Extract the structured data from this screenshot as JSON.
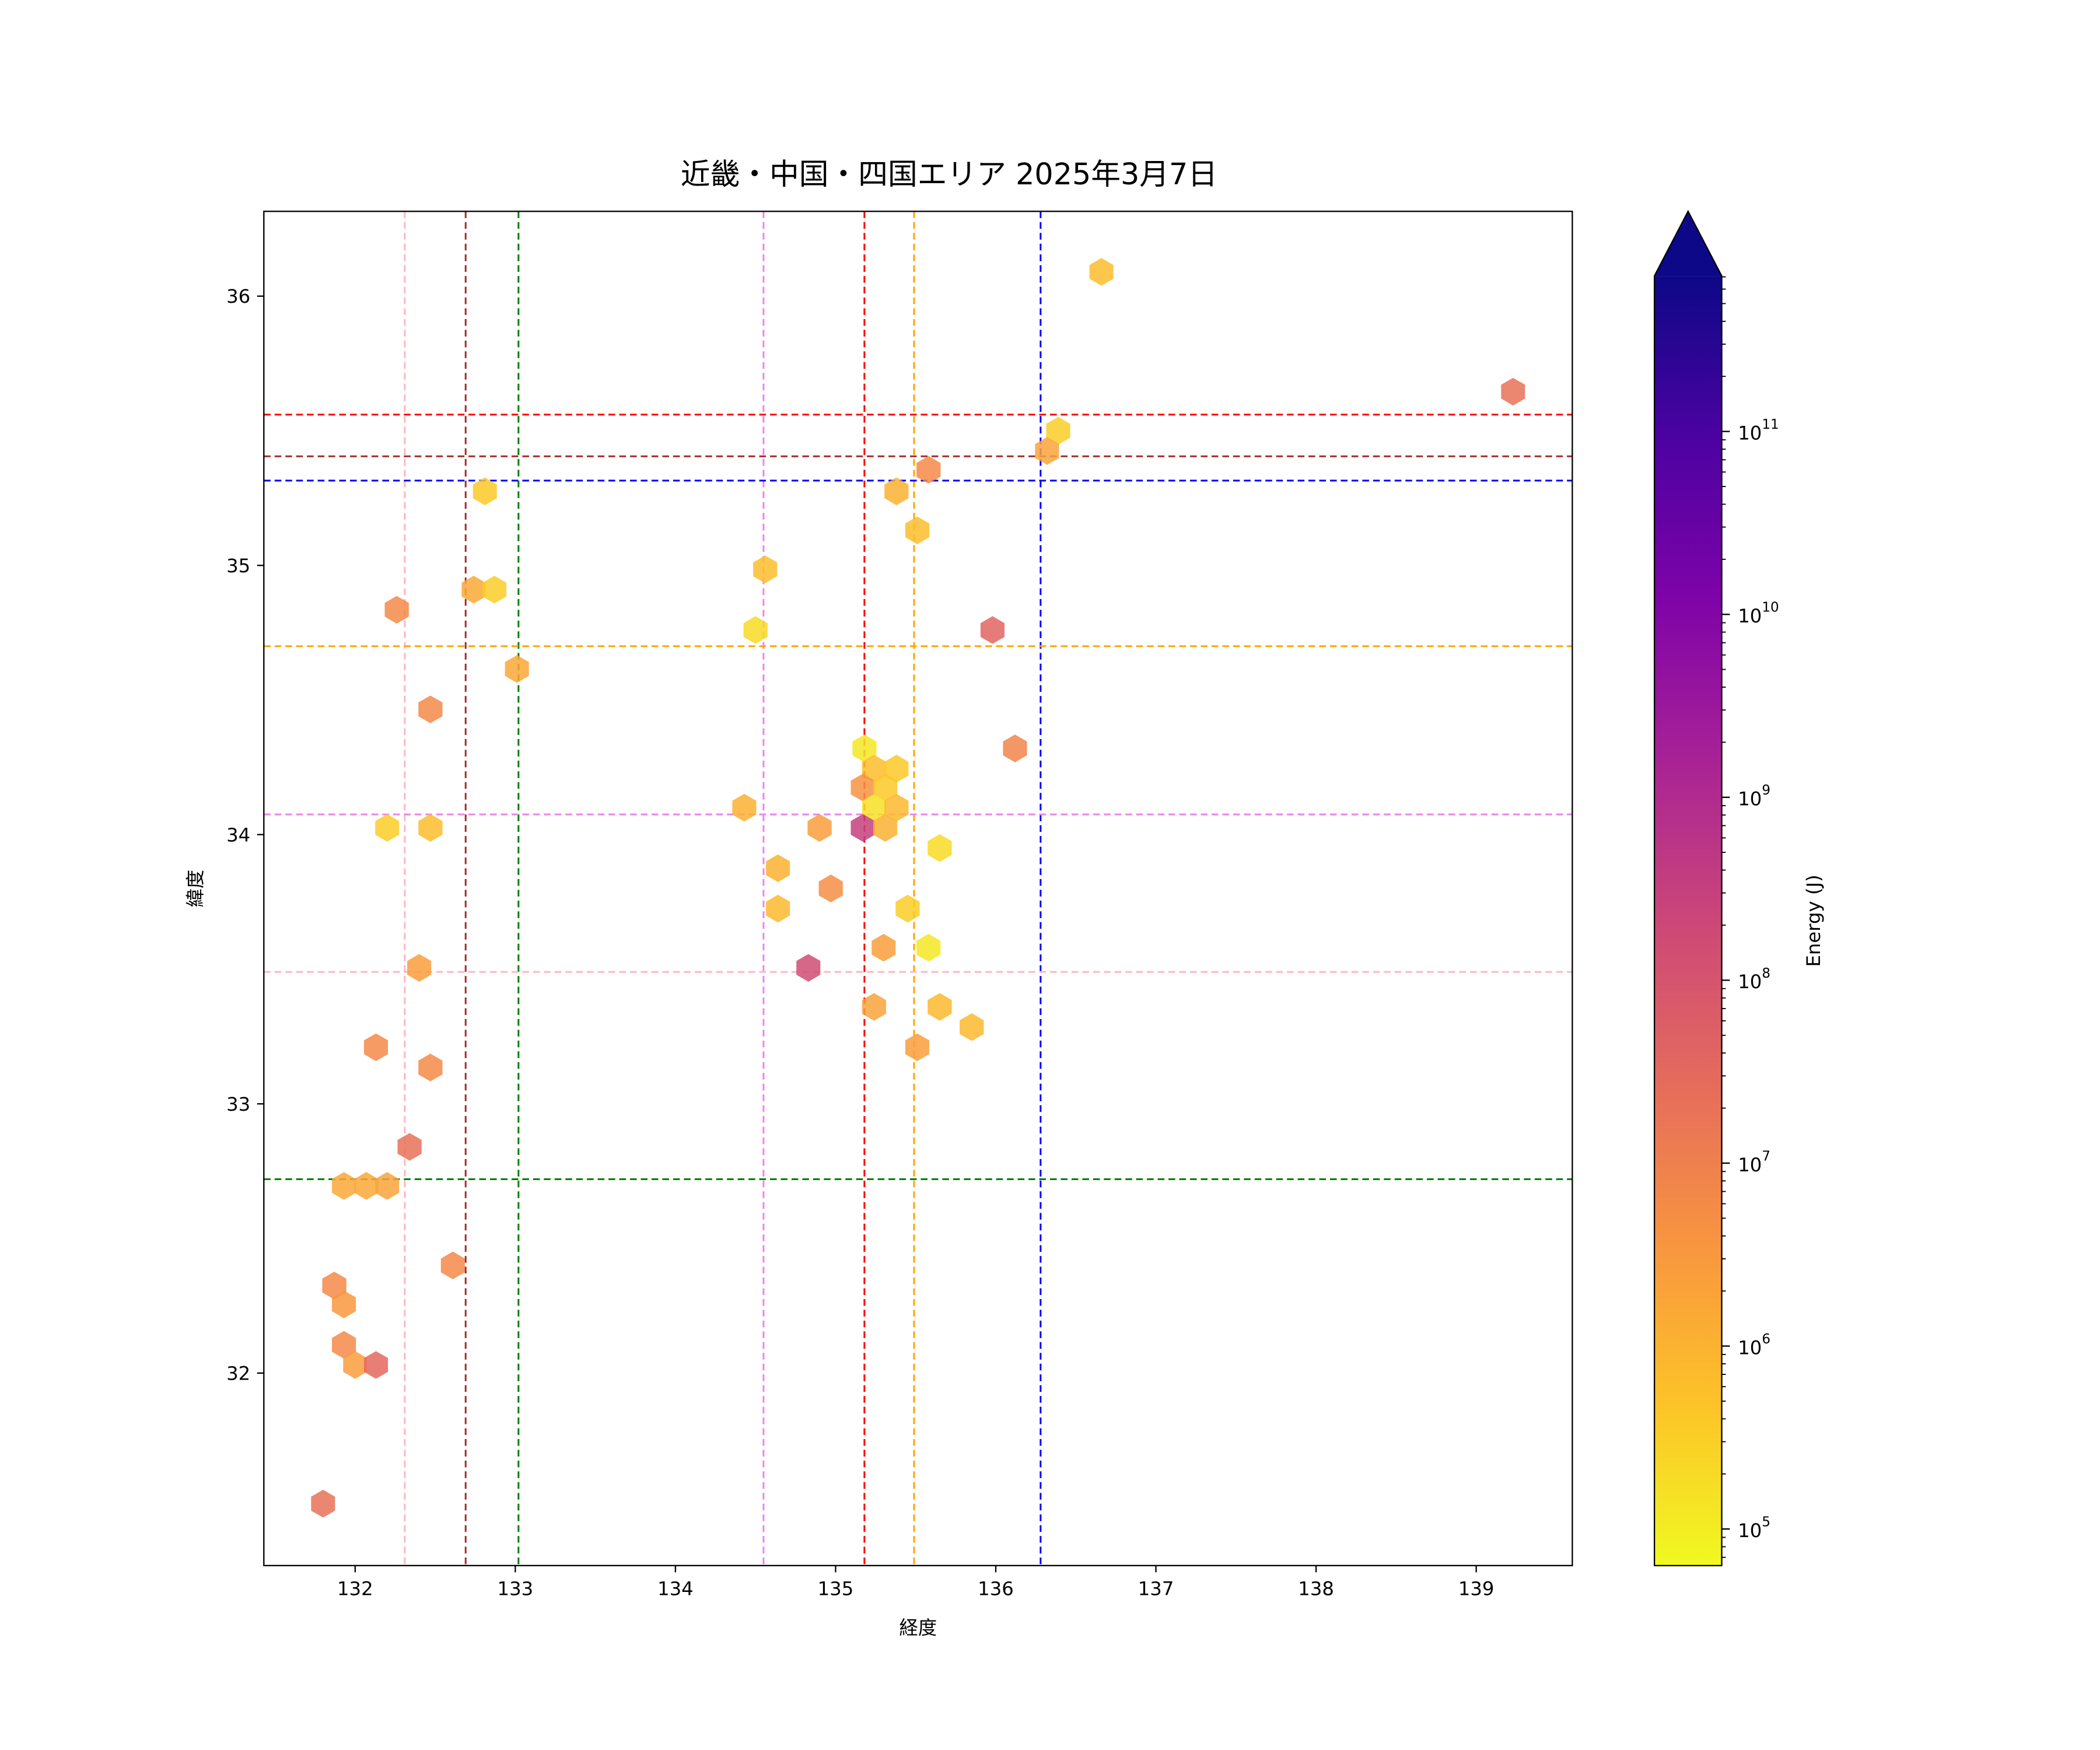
{
  "chart_data": {
    "type": "hexbin",
    "title": "近畿・中国・四国エリア 2025年3月7日",
    "xlabel": "経度",
    "ylabel": "緯度",
    "xlim": [
      131.43,
      139.6
    ],
    "ylim": [
      31.285,
      36.315
    ],
    "xticks": [
      132,
      133,
      134,
      135,
      136,
      137,
      138,
      139
    ],
    "yticks": [
      32,
      33,
      34,
      35,
      36
    ],
    "grid": false,
    "colorbar": {
      "label": "Energy (J)",
      "scale": "log",
      "colormap": "plasma",
      "log10_range": [
        4.8,
        11.85
      ],
      "extend": "max",
      "ticks": [
        5,
        6,
        7,
        8,
        9,
        10,
        11
      ],
      "tick_base": "10"
    },
    "points_log10_energy": [
      [
        136.66,
        36.09,
        5.8
      ],
      [
        139.23,
        35.645,
        7.3
      ],
      [
        136.39,
        35.5,
        5.5
      ],
      [
        136.32,
        35.425,
        6.3
      ],
      [
        135.58,
        35.355,
        6.8
      ],
      [
        132.81,
        35.275,
        5.6
      ],
      [
        135.38,
        35.275,
        6.0
      ],
      [
        135.51,
        35.13,
        5.8
      ],
      [
        134.56,
        34.985,
        5.8
      ],
      [
        132.26,
        34.835,
        6.8
      ],
      [
        132.74,
        34.91,
        6.2
      ],
      [
        132.87,
        34.91,
        5.5
      ],
      [
        134.5,
        34.76,
        5.3
      ],
      [
        135.98,
        34.76,
        7.6
      ],
      [
        133.01,
        34.615,
        6.2
      ],
      [
        132.47,
        34.465,
        6.8
      ],
      [
        135.18,
        34.32,
        5.1
      ],
      [
        136.12,
        34.32,
        6.9
      ],
      [
        135.24,
        34.245,
        5.8
      ],
      [
        135.38,
        34.245,
        5.6
      ],
      [
        135.17,
        34.175,
        6.6
      ],
      [
        135.31,
        34.175,
        5.6
      ],
      [
        134.43,
        34.1,
        6.0
      ],
      [
        135.24,
        34.1,
        5.2
      ],
      [
        135.38,
        34.1,
        5.9
      ],
      [
        132.2,
        34.025,
        5.5
      ],
      [
        132.47,
        34.025,
        5.8
      ],
      [
        134.9,
        34.025,
        6.4
      ],
      [
        135.17,
        34.025,
        8.5
      ],
      [
        135.31,
        34.025,
        6.0
      ],
      [
        135.65,
        33.95,
        5.3
      ],
      [
        134.64,
        33.875,
        6.0
      ],
      [
        134.97,
        33.8,
        6.7
      ],
      [
        134.64,
        33.725,
        5.9
      ],
      [
        135.45,
        33.725,
        5.5
      ],
      [
        135.3,
        33.58,
        6.4
      ],
      [
        135.58,
        33.58,
        5.1
      ],
      [
        134.83,
        33.505,
        8.2
      ],
      [
        132.4,
        33.505,
        6.4
      ],
      [
        135.24,
        33.36,
        6.3
      ],
      [
        135.65,
        33.36,
        5.9
      ],
      [
        135.85,
        33.285,
        5.9
      ],
      [
        135.51,
        33.21,
        6.4
      ],
      [
        132.13,
        33.21,
        6.8
      ],
      [
        132.47,
        33.135,
        6.8
      ],
      [
        132.34,
        32.84,
        7.3
      ],
      [
        131.93,
        32.695,
        6.2
      ],
      [
        132.07,
        32.695,
        6.2
      ],
      [
        132.2,
        32.695,
        6.3
      ],
      [
        132.61,
        32.4,
        6.8
      ],
      [
        131.87,
        32.325,
        6.8
      ],
      [
        131.93,
        32.255,
        6.5
      ],
      [
        131.93,
        32.105,
        6.8
      ],
      [
        132.0,
        32.03,
        6.4
      ],
      [
        132.13,
        32.03,
        7.5
      ],
      [
        131.8,
        31.515,
        7.3
      ]
    ],
    "reference_lines": {
      "vertical": [
        {
          "x": 132.31,
          "color": "#ffb6c1"
        },
        {
          "x": 132.69,
          "color": "#a52a2a"
        },
        {
          "x": 133.02,
          "color": "#008000"
        },
        {
          "x": 134.55,
          "color": "#ee82ee"
        },
        {
          "x": 135.18,
          "color": "#ff0000"
        },
        {
          "x": 135.49,
          "color": "#ffa500"
        },
        {
          "x": 136.28,
          "color": "#0000ff"
        }
      ],
      "horizontal": [
        {
          "y": 35.56,
          "color": "#ff0000"
        },
        {
          "y": 35.405,
          "color": "#a52a2a"
        },
        {
          "y": 35.315,
          "color": "#0000ff"
        },
        {
          "y": 34.7,
          "color": "#ffa500"
        },
        {
          "y": 34.075,
          "color": "#ee82ee"
        },
        {
          "y": 33.49,
          "color": "#ffb6c1"
        },
        {
          "y": 32.72,
          "color": "#008000"
        }
      ]
    }
  }
}
